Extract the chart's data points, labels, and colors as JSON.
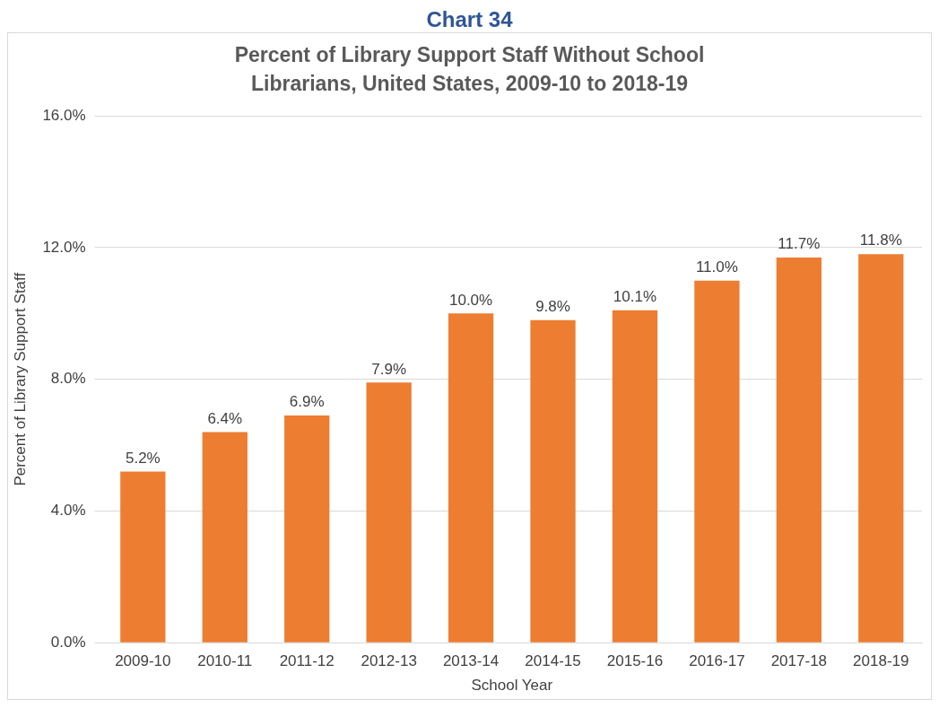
{
  "chart_data": {
    "type": "bar",
    "title": "Percent of Library Support Staff Without School Librarians, United States, 2009-10 to 2018-19",
    "annotations": [
      "Chart 34"
    ],
    "xlabel": "School Year",
    "ylabel": "Percent of Library Support Staff",
    "categories": [
      "2009-10",
      "2010-11",
      "2011-12",
      "2012-13",
      "2013-14",
      "2014-15",
      "2015-16",
      "2016-17",
      "2017-18",
      "2018-19"
    ],
    "values": [
      5.2,
      6.4,
      6.9,
      7.9,
      10.0,
      9.8,
      10.1,
      11.0,
      11.7,
      11.8
    ],
    "value_labels": [
      "5.2%",
      "6.4%",
      "6.9%",
      "7.9%",
      "10.0%",
      "9.8%",
      "10.1%",
      "11.0%",
      "11.7%",
      "11.8%"
    ],
    "color": "#ed7d31",
    "ylim": [
      0,
      16
    ],
    "yticks": [
      {
        "value": 0,
        "label": "0.0%"
      },
      {
        "value": 4,
        "label": "4.0%"
      },
      {
        "value": 8,
        "label": "8.0%"
      },
      {
        "value": 12,
        "label": "12.0%"
      },
      {
        "value": 16,
        "label": "16.0%"
      }
    ],
    "grid": "y",
    "legend": false
  }
}
